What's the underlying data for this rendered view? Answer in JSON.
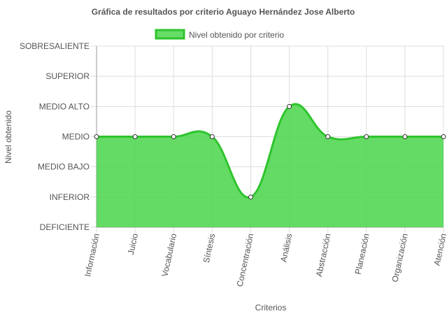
{
  "chart_data": {
    "type": "area",
    "title": "Gráfica de resultados por criterio Aguayo Hernández Jose Alberto",
    "xlabel": "Criterios",
    "ylabel": "Nivel obtenido",
    "legend_position": "top",
    "categories": [
      "Información",
      "Juicio",
      "Vocabulario",
      "Síntesis",
      "Concentración",
      "Análisis",
      "Abstracción",
      "Planeación",
      "Organización",
      "Atención"
    ],
    "y_levels": [
      "DEFICIENTE",
      "INFERIOR",
      "MEDIO BAJO",
      "MEDIO",
      "MEDIO ALTO",
      "SUPERIOR",
      "SOBRESALIENTE"
    ],
    "ylim": [
      0,
      6
    ],
    "series": [
      {
        "name": "Nivel obtenido por criterio",
        "values": [
          3,
          3,
          3,
          3,
          1,
          4,
          3,
          3,
          3,
          3
        ]
      }
    ],
    "colors": {
      "fill": "#4fd64f",
      "line": "#2ec42e",
      "point_fill": "#ffffff",
      "point_stroke": "#333333",
      "grid": "#dddddd"
    },
    "grid": true
  }
}
